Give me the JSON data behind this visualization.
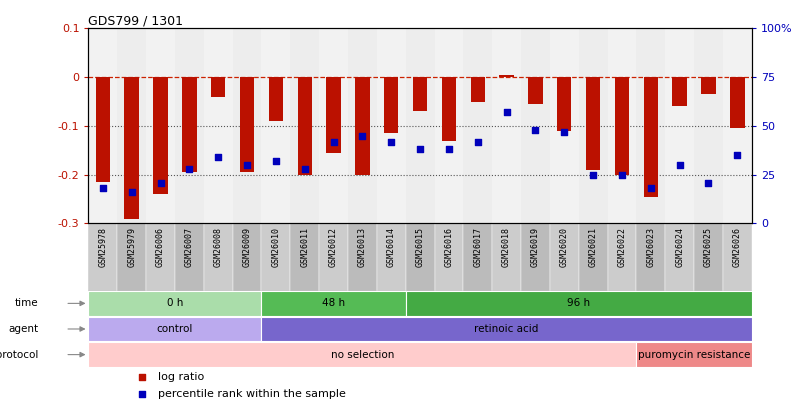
{
  "title": "GDS799 / 1301",
  "samples": [
    "GSM25978",
    "GSM25979",
    "GSM26006",
    "GSM26007",
    "GSM26008",
    "GSM26009",
    "GSM26010",
    "GSM26011",
    "GSM26012",
    "GSM26013",
    "GSM26014",
    "GSM26015",
    "GSM26016",
    "GSM26017",
    "GSM26018",
    "GSM26019",
    "GSM26020",
    "GSM26021",
    "GSM26022",
    "GSM26023",
    "GSM26024",
    "GSM26025",
    "GSM26026"
  ],
  "log_ratio": [
    -0.215,
    -0.29,
    -0.24,
    -0.195,
    -0.04,
    -0.195,
    -0.09,
    -0.2,
    -0.155,
    -0.2,
    -0.115,
    -0.07,
    -0.13,
    -0.05,
    0.005,
    -0.055,
    -0.11,
    -0.19,
    -0.2,
    -0.245,
    -0.06,
    -0.035,
    -0.105
  ],
  "percentile_rank": [
    18,
    16,
    21,
    28,
    34,
    30,
    32,
    28,
    42,
    45,
    42,
    38,
    38,
    42,
    57,
    48,
    47,
    25,
    25,
    18,
    30,
    21,
    35
  ],
  "ylim_left": [
    -0.3,
    0.1
  ],
  "ylim_right": [
    0,
    100
  ],
  "right_ticks": [
    0,
    25,
    50,
    75,
    100
  ],
  "right_tick_labels": [
    "0",
    "25",
    "50",
    "75",
    "100%"
  ],
  "left_ticks": [
    -0.3,
    -0.2,
    -0.1,
    0.0,
    0.1
  ],
  "left_tick_labels": [
    "-0.3",
    "-0.2",
    "-0.1",
    "0",
    "0.1"
  ],
  "bar_color": "#bb1100",
  "dot_color": "#0000bb",
  "hline_color": "#cc2200",
  "dotted_line_color": "#555555",
  "col_colors": [
    "#cccccc",
    "#bbbbbb"
  ],
  "groups": {
    "time": [
      {
        "label": "0 h",
        "start": 0,
        "end": 5,
        "color": "#aaddaa"
      },
      {
        "label": "48 h",
        "start": 6,
        "end": 10,
        "color": "#55bb55"
      },
      {
        "label": "96 h",
        "start": 11,
        "end": 22,
        "color": "#44aa44"
      }
    ],
    "agent": [
      {
        "label": "control",
        "start": 0,
        "end": 5,
        "color": "#bbaaee"
      },
      {
        "label": "retinoic acid",
        "start": 6,
        "end": 22,
        "color": "#7766cc"
      }
    ],
    "growth_protocol": [
      {
        "label": "no selection",
        "start": 0,
        "end": 18,
        "color": "#ffcccc"
      },
      {
        "label": "puromycin resistance",
        "start": 19,
        "end": 22,
        "color": "#ee8888"
      }
    ]
  },
  "legend_items": [
    {
      "label": "log ratio",
      "color": "#bb1100"
    },
    {
      "label": "percentile rank within the sample",
      "color": "#0000bb"
    }
  ],
  "row_label_color": "#555555",
  "background_color": "#ffffff",
  "bar_width": 0.5
}
